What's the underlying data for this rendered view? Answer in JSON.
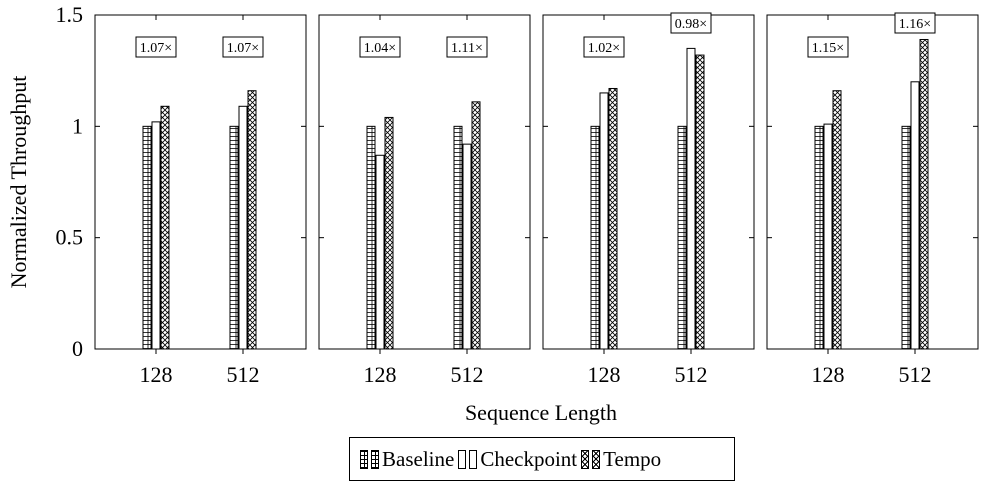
{
  "chart_data": {
    "type": "bar",
    "xlabel": "Sequence Length",
    "ylabel": "Normalized Throughput",
    "ylim": [
      0,
      1.5
    ],
    "yticks": [
      "0",
      "0.5",
      "1",
      "1.5"
    ],
    "categories": [
      "128",
      "512"
    ],
    "legend": [
      "Baseline",
      "Checkpoint",
      "Tempo"
    ],
    "legend_position": "bottom-center",
    "grid": false,
    "panels": [
      {
        "series": [
          {
            "name": "Baseline",
            "values": [
              1.0,
              1.0
            ]
          },
          {
            "name": "Checkpoint",
            "values": [
              1.02,
              1.09
            ]
          },
          {
            "name": "Tempo",
            "values": [
              1.09,
              1.16
            ]
          }
        ],
        "annotations": [
          "1.07×",
          "1.07×"
        ]
      },
      {
        "series": [
          {
            "name": "Baseline",
            "values": [
              1.0,
              1.0
            ]
          },
          {
            "name": "Checkpoint",
            "values": [
              0.87,
              0.92
            ]
          },
          {
            "name": "Tempo",
            "values": [
              1.04,
              1.11
            ]
          }
        ],
        "annotations": [
          "1.04×",
          "1.11×"
        ]
      },
      {
        "series": [
          {
            "name": "Baseline",
            "values": [
              1.0,
              1.0
            ]
          },
          {
            "name": "Checkpoint",
            "values": [
              1.15,
              1.35
            ]
          },
          {
            "name": "Tempo",
            "values": [
              1.17,
              1.32
            ]
          }
        ],
        "annotations": [
          "1.02×",
          "0.98×"
        ]
      },
      {
        "series": [
          {
            "name": "Baseline",
            "values": [
              1.0,
              1.0
            ]
          },
          {
            "name": "Checkpoint",
            "values": [
              1.01,
              1.2
            ]
          },
          {
            "name": "Tempo",
            "values": [
              1.16,
              1.39
            ]
          }
        ],
        "annotations": [
          "1.15×",
          "1.16×"
        ]
      }
    ]
  }
}
